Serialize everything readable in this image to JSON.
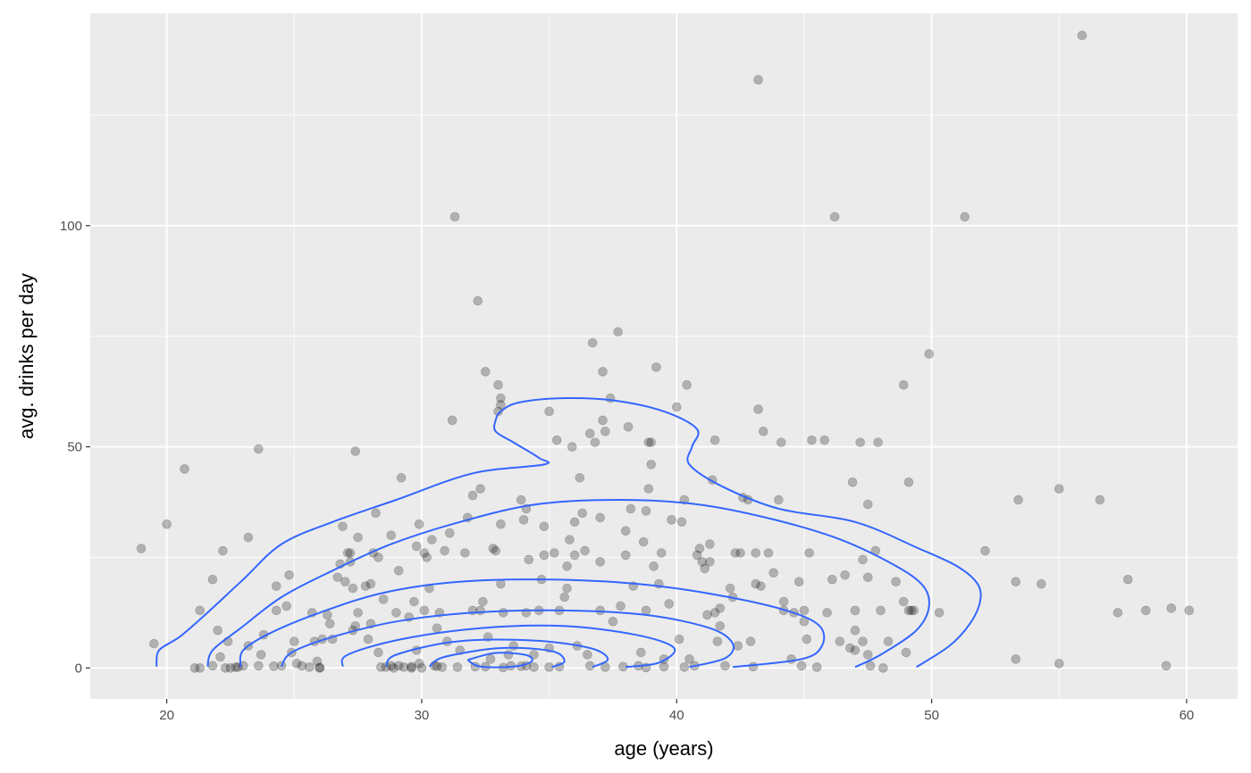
{
  "chart_data": {
    "type": "scatter",
    "title": "",
    "xlabel": "age (years)",
    "ylabel": "avg. drinks per day",
    "xlim": [
      17,
      62
    ],
    "ylim": [
      -7,
      148
    ],
    "x_ticks": [
      20,
      30,
      40,
      50,
      60
    ],
    "x_tick_labels": [
      "20",
      "30",
      "40",
      "50",
      "60"
    ],
    "y_ticks": [
      0,
      50,
      100
    ],
    "y_tick_labels": [
      "0",
      "50",
      "100"
    ],
    "grid": true,
    "legend": "none",
    "colors": {
      "panel": "#ebebeb",
      "grid": "#ffffff",
      "points": "#000000",
      "contour": "#3366ff"
    },
    "point_alpha": 0.25,
    "points": [
      [
        19.0,
        27
      ],
      [
        19.5,
        5.5
      ],
      [
        20.0,
        32.5
      ],
      [
        20.7,
        45
      ],
      [
        21.1,
        0
      ],
      [
        21.3,
        13
      ],
      [
        21.8,
        0.5
      ],
      [
        21.8,
        20
      ],
      [
        22.0,
        8.5
      ],
      [
        22.1,
        2.5
      ],
      [
        22.2,
        26.5
      ],
      [
        22.3,
        0
      ],
      [
        22.4,
        6
      ],
      [
        22.5,
        0
      ],
      [
        22.8,
        0.2
      ],
      [
        23.0,
        0.5
      ],
      [
        23.2,
        29.5
      ],
      [
        23.2,
        5
      ],
      [
        23.6,
        0.5
      ],
      [
        23.6,
        49.5
      ],
      [
        23.7,
        3
      ],
      [
        23.8,
        7.5
      ],
      [
        24.3,
        18.5
      ],
      [
        24.3,
        13
      ],
      [
        24.5,
        0.5
      ],
      [
        24.7,
        14
      ],
      [
        24.8,
        21
      ],
      [
        24.9,
        3.5
      ],
      [
        25.0,
        6
      ],
      [
        25.1,
        1
      ],
      [
        25.3,
        0.5
      ],
      [
        25.6,
        0.2
      ],
      [
        25.7,
        12.5
      ],
      [
        25.8,
        6
      ],
      [
        25.9,
        1.5
      ],
      [
        26.0,
        0
      ],
      [
        26.1,
        6.5
      ],
      [
        26.3,
        12
      ],
      [
        26.4,
        10
      ],
      [
        26.5,
        6.5
      ],
      [
        26.7,
        20.5
      ],
      [
        26.8,
        23.5
      ],
      [
        26.9,
        32
      ],
      [
        27.0,
        19.5
      ],
      [
        27.1,
        26
      ],
      [
        27.2,
        24
      ],
      [
        27.2,
        26
      ],
      [
        27.3,
        18
      ],
      [
        27.3,
        8.5
      ],
      [
        27.4,
        9.5
      ],
      [
        27.5,
        12.5
      ],
      [
        27.5,
        29.5
      ],
      [
        27.4,
        49
      ],
      [
        27.8,
        18.5
      ],
      [
        27.9,
        6.5
      ],
      [
        28.0,
        10
      ],
      [
        28.0,
        19
      ],
      [
        28.1,
        26
      ],
      [
        28.2,
        35
      ],
      [
        28.3,
        3.5
      ],
      [
        28.3,
        25
      ],
      [
        28.4,
        0.2
      ],
      [
        28.5,
        15.5
      ],
      [
        28.8,
        30
      ],
      [
        28.8,
        0.5
      ],
      [
        28.9,
        0
      ],
      [
        29.0,
        12.5
      ],
      [
        29.1,
        22
      ],
      [
        29.2,
        43
      ],
      [
        29.3,
        0.2
      ],
      [
        29.5,
        11.5
      ],
      [
        29.6,
        0
      ],
      [
        29.7,
        15
      ],
      [
        29.8,
        4
      ],
      [
        29.8,
        27.5
      ],
      [
        29.9,
        32.5
      ],
      [
        29.9,
        1
      ],
      [
        30.0,
        0
      ],
      [
        30.1,
        13
      ],
      [
        30.1,
        26
      ],
      [
        30.2,
        25
      ],
      [
        30.3,
        18
      ],
      [
        30.4,
        29
      ],
      [
        30.5,
        0.5
      ],
      [
        30.6,
        9
      ],
      [
        30.7,
        12.5
      ],
      [
        30.8,
        0.2
      ],
      [
        30.9,
        26.5
      ],
      [
        31.0,
        6
      ],
      [
        31.1,
        30.5
      ],
      [
        31.2,
        56
      ],
      [
        31.3,
        102
      ],
      [
        31.5,
        4
      ],
      [
        31.7,
        26
      ],
      [
        31.8,
        34
      ],
      [
        32.0,
        39
      ],
      [
        32.0,
        13
      ],
      [
        32.1,
        0.3
      ],
      [
        32.2,
        83
      ],
      [
        32.3,
        40.5
      ],
      [
        32.3,
        13
      ],
      [
        32.4,
        15
      ],
      [
        32.5,
        67
      ],
      [
        32.6,
        7
      ],
      [
        32.7,
        2
      ],
      [
        32.8,
        27
      ],
      [
        32.9,
        26.5
      ],
      [
        33.0,
        64
      ],
      [
        33.0,
        58
      ],
      [
        33.1,
        61
      ],
      [
        33.1,
        59.5
      ],
      [
        33.1,
        19
      ],
      [
        33.1,
        32.5
      ],
      [
        33.2,
        12.5
      ],
      [
        33.4,
        3
      ],
      [
        33.5,
        0.5
      ],
      [
        33.6,
        5
      ],
      [
        33.9,
        38
      ],
      [
        34.0,
        33.5
      ],
      [
        34.1,
        12.5
      ],
      [
        34.1,
        0.5
      ],
      [
        34.1,
        36
      ],
      [
        34.2,
        24.5
      ],
      [
        34.4,
        3
      ],
      [
        34.6,
        13
      ],
      [
        34.7,
        20
      ],
      [
        34.8,
        25.5
      ],
      [
        34.8,
        32
      ],
      [
        35.0,
        58
      ],
      [
        35.0,
        4.5
      ],
      [
        35.0,
        0.2
      ],
      [
        35.2,
        26
      ],
      [
        35.3,
        51.5
      ],
      [
        35.4,
        13
      ],
      [
        35.6,
        16
      ],
      [
        35.7,
        18
      ],
      [
        35.7,
        23
      ],
      [
        35.8,
        29
      ],
      [
        35.9,
        50
      ],
      [
        36.0,
        25.5
      ],
      [
        36.0,
        33
      ],
      [
        36.1,
        5
      ],
      [
        36.2,
        43
      ],
      [
        36.3,
        35
      ],
      [
        36.4,
        26.5
      ],
      [
        36.5,
        3
      ],
      [
        36.6,
        53
      ],
      [
        36.7,
        73.5
      ],
      [
        36.8,
        51
      ],
      [
        37.0,
        13
      ],
      [
        37.0,
        24
      ],
      [
        37.0,
        34
      ],
      [
        37.1,
        67
      ],
      [
        37.1,
        56
      ],
      [
        37.2,
        53.5
      ],
      [
        37.4,
        61
      ],
      [
        37.5,
        10.5
      ],
      [
        37.7,
        76
      ],
      [
        37.8,
        14
      ],
      [
        38.0,
        25.5
      ],
      [
        38.0,
        31
      ],
      [
        38.1,
        54.5
      ],
      [
        38.2,
        36
      ],
      [
        38.3,
        18.5
      ],
      [
        38.5,
        0.5
      ],
      [
        38.6,
        3.5
      ],
      [
        38.7,
        28.5
      ],
      [
        38.8,
        13
      ],
      [
        38.8,
        35.5
      ],
      [
        38.9,
        40.5
      ],
      [
        38.9,
        51
      ],
      [
        39.0,
        46
      ],
      [
        39.0,
        51
      ],
      [
        39.1,
        23
      ],
      [
        39.2,
        68
      ],
      [
        39.3,
        19
      ],
      [
        39.4,
        26
      ],
      [
        39.5,
        2
      ],
      [
        39.7,
        14.5
      ],
      [
        39.8,
        33.5
      ],
      [
        40.0,
        59
      ],
      [
        40.1,
        6.5
      ],
      [
        40.2,
        33
      ],
      [
        40.3,
        38
      ],
      [
        40.4,
        64
      ],
      [
        40.5,
        2
      ],
      [
        40.7,
        0.5
      ],
      [
        40.8,
        25.5
      ],
      [
        40.9,
        27
      ],
      [
        41.0,
        24
      ],
      [
        41.1,
        22.5
      ],
      [
        41.2,
        12
      ],
      [
        41.3,
        24
      ],
      [
        41.3,
        28
      ],
      [
        41.4,
        42.5
      ],
      [
        41.5,
        51.5
      ],
      [
        41.5,
        12.5
      ],
      [
        41.6,
        6
      ],
      [
        41.7,
        9.5
      ],
      [
        41.7,
        13.5
      ],
      [
        41.9,
        0.5
      ],
      [
        42.1,
        18
      ],
      [
        42.2,
        16
      ],
      [
        42.3,
        26
      ],
      [
        42.4,
        5
      ],
      [
        42.5,
        26
      ],
      [
        42.6,
        38.5
      ],
      [
        42.8,
        38
      ],
      [
        42.9,
        6
      ],
      [
        43.0,
        0.3
      ],
      [
        43.1,
        19
      ],
      [
        43.1,
        26
      ],
      [
        43.2,
        58.5
      ],
      [
        43.2,
        133
      ],
      [
        43.3,
        18.5
      ],
      [
        43.4,
        53.5
      ],
      [
        43.6,
        26
      ],
      [
        43.8,
        21.5
      ],
      [
        44.0,
        38
      ],
      [
        44.1,
        51
      ],
      [
        44.2,
        13
      ],
      [
        44.2,
        15
      ],
      [
        44.5,
        2
      ],
      [
        44.6,
        12.5
      ],
      [
        44.8,
        19.5
      ],
      [
        44.9,
        0.5
      ],
      [
        45.0,
        10.5
      ],
      [
        45.0,
        13
      ],
      [
        45.1,
        6.5
      ],
      [
        45.2,
        26
      ],
      [
        45.3,
        51.5
      ],
      [
        45.5,
        0.2
      ],
      [
        45.8,
        51.5
      ],
      [
        45.9,
        12.5
      ],
      [
        46.1,
        20
      ],
      [
        46.2,
        102
      ],
      [
        46.4,
        6
      ],
      [
        46.6,
        21
      ],
      [
        46.8,
        4.5
      ],
      [
        46.9,
        42
      ],
      [
        47.0,
        4
      ],
      [
        47.0,
        13
      ],
      [
        47.0,
        8.5
      ],
      [
        47.2,
        51
      ],
      [
        47.3,
        24.5
      ],
      [
        47.3,
        6
      ],
      [
        47.5,
        37
      ],
      [
        47.5,
        20.5
      ],
      [
        47.5,
        3
      ],
      [
        47.6,
        0.5
      ],
      [
        47.8,
        26.5
      ],
      [
        47.9,
        51
      ],
      [
        48.0,
        13
      ],
      [
        48.1,
        0
      ],
      [
        48.3,
        6
      ],
      [
        48.6,
        19.5
      ],
      [
        48.9,
        64
      ],
      [
        48.9,
        15
      ],
      [
        49.0,
        3.5
      ],
      [
        49.1,
        42
      ],
      [
        49.1,
        13
      ],
      [
        49.2,
        13
      ],
      [
        49.3,
        13
      ],
      [
        49.9,
        71
      ],
      [
        50.3,
        12.5
      ],
      [
        51.3,
        102
      ],
      [
        52.1,
        26.5
      ],
      [
        53.3,
        19.5
      ],
      [
        53.3,
        2
      ],
      [
        53.4,
        38
      ],
      [
        54.3,
        19
      ],
      [
        55.0,
        1
      ],
      [
        55.0,
        40.5
      ],
      [
        55.9,
        143
      ],
      [
        56.6,
        38
      ],
      [
        57.3,
        12.5
      ],
      [
        57.7,
        20
      ],
      [
        58.4,
        13
      ],
      [
        59.2,
        0.5
      ],
      [
        59.4,
        13.5
      ],
      [
        60.1,
        13
      ],
      [
        21.3,
        0
      ],
      [
        22.7,
        0.2
      ],
      [
        24.2,
        0.4
      ],
      [
        26.0,
        0.1
      ],
      [
        28.6,
        0.2
      ],
      [
        29.1,
        0.5
      ],
      [
        29.6,
        0.3
      ],
      [
        30.6,
        0.4
      ],
      [
        31.4,
        0.2
      ],
      [
        32.5,
        0.3
      ],
      [
        33.2,
        0.1
      ],
      [
        33.9,
        0.4
      ],
      [
        34.4,
        0.2
      ],
      [
        35.4,
        0.3
      ],
      [
        36.6,
        0.5
      ],
      [
        37.2,
        0.2
      ],
      [
        37.9,
        0.3
      ],
      [
        38.8,
        0.1
      ],
      [
        39.5,
        0.3
      ],
      [
        40.3,
        0.2
      ]
    ],
    "contours": [
      [
        [
          19.6,
          0.3
        ],
        [
          19.7,
          4
        ],
        [
          20.5,
          7
        ],
        [
          21.5,
          12
        ],
        [
          23,
          20
        ],
        [
          24.5,
          28
        ],
        [
          26.5,
          33
        ],
        [
          29,
          38
        ],
        [
          32,
          44
        ],
        [
          34.8,
          46
        ],
        [
          34.6,
          47.5
        ],
        [
          33.6,
          51
        ],
        [
          32.9,
          53.5
        ],
        [
          32.9,
          56
        ],
        [
          33.1,
          58
        ],
        [
          33.8,
          60
        ],
        [
          35.5,
          61
        ],
        [
          37.5,
          60.5
        ],
        [
          39.5,
          58
        ],
        [
          40.8,
          54
        ],
        [
          40.6,
          50
        ],
        [
          40.5,
          46
        ],
        [
          41.8,
          41
        ],
        [
          44,
          36
        ],
        [
          47,
          33
        ],
        [
          49.5,
          27
        ],
        [
          51,
          23
        ],
        [
          51.8,
          19
        ],
        [
          51.9,
          15
        ],
        [
          51.5,
          10
        ],
        [
          50.7,
          5
        ],
        [
          49.4,
          0.2
        ]
      ],
      [
        [
          21.6,
          0.3
        ],
        [
          21.8,
          4
        ],
        [
          22.9,
          9
        ],
        [
          24.5,
          16
        ],
        [
          26.5,
          22
        ],
        [
          28.8,
          28
        ],
        [
          31.5,
          33
        ],
        [
          34.5,
          37
        ],
        [
          37.8,
          38
        ],
        [
          40.8,
          37
        ],
        [
          43.5,
          34
        ],
        [
          46.2,
          29.5
        ],
        [
          48.3,
          24
        ],
        [
          49.6,
          19
        ],
        [
          49.9,
          14
        ],
        [
          49.4,
          8.5
        ],
        [
          48,
          3
        ],
        [
          47.0,
          0.2
        ]
      ],
      [
        [
          22.9,
          0.3
        ],
        [
          23.0,
          4
        ],
        [
          24.1,
          8
        ],
        [
          26,
          12.5
        ],
        [
          28.5,
          17
        ],
        [
          31.5,
          19.5
        ],
        [
          35,
          20
        ],
        [
          38.5,
          19
        ],
        [
          41.6,
          16.5
        ],
        [
          44.3,
          13
        ],
        [
          45.6,
          9.5
        ],
        [
          45.7,
          5
        ],
        [
          44.9,
          2
        ],
        [
          42.2,
          0.2
        ]
      ],
      [
        [
          24.5,
          0.3
        ],
        [
          24.9,
          3.5
        ],
        [
          26.5,
          7
        ],
        [
          29,
          10.5
        ],
        [
          32,
          12.5
        ],
        [
          35.5,
          13
        ],
        [
          38.8,
          12
        ],
        [
          41.3,
          9
        ],
        [
          42.2,
          5.5
        ],
        [
          41.9,
          2.2
        ],
        [
          40.5,
          0.2
        ]
      ],
      [
        [
          26.9,
          0.3
        ],
        [
          27.1,
          3
        ],
        [
          29.2,
          6.5
        ],
        [
          32.3,
          9
        ],
        [
          35.5,
          9.5
        ],
        [
          38.4,
          7.5
        ],
        [
          39.9,
          4.5
        ],
        [
          39.3,
          1.2
        ],
        [
          38.0,
          0.2
        ]
      ],
      [
        [
          28.6,
          0.3
        ],
        [
          29.0,
          3
        ],
        [
          31.4,
          6
        ],
        [
          34.4,
          6.2
        ],
        [
          36.6,
          4.5
        ],
        [
          37.3,
          2
        ],
        [
          36.7,
          0.2
        ]
      ],
      [
        [
          30.3,
          0.3
        ],
        [
          30.9,
          2.5
        ],
        [
          33.1,
          4.5
        ],
        [
          35.1,
          3.8
        ],
        [
          35.6,
          1.5
        ],
        [
          35.1,
          0.2
        ]
      ],
      [
        [
          31.8,
          1.8
        ],
        [
          32.9,
          3.4
        ],
        [
          34.1,
          2.9
        ],
        [
          34.3,
          1.4
        ],
        [
          33.6,
          0.3
        ],
        [
          32.3,
          0.3
        ],
        [
          31.8,
          1.8
        ]
      ]
    ]
  }
}
